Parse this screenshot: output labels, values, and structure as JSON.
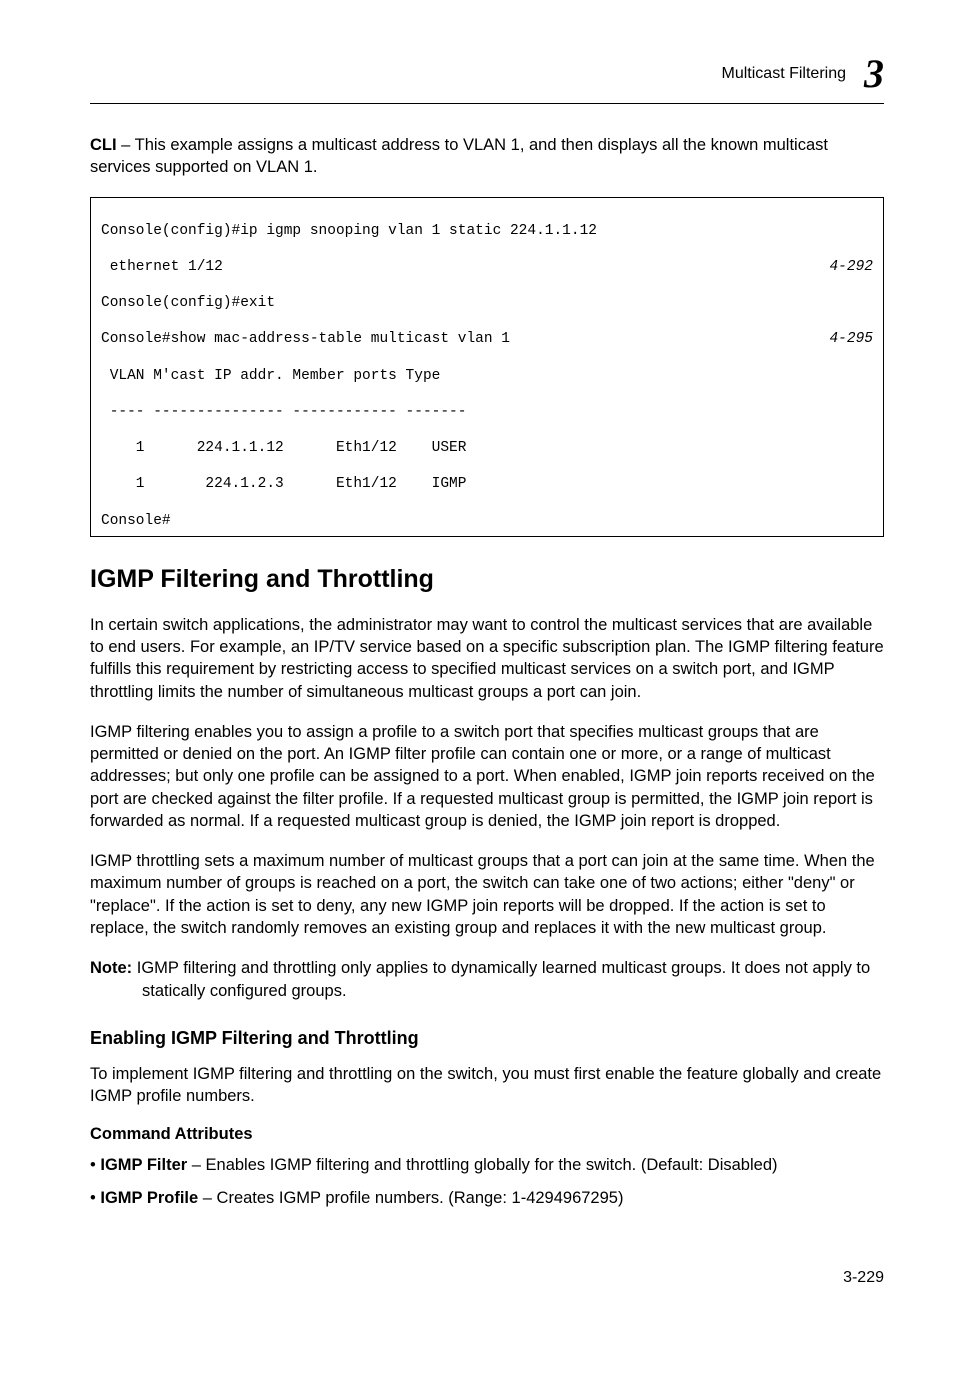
{
  "header": {
    "title": "Multicast Filtering",
    "chapter_num": "3"
  },
  "intro": {
    "cli_label": "CLI",
    "cli_text": " – This example assigns a multicast address to VLAN 1, and then displays all the known multicast services supported on VLAN 1."
  },
  "code": {
    "l1": "Console(config)#ip igmp snooping vlan 1 static 224.1.1.12",
    "l2": " ethernet 1/12",
    "l2ref": "4-292",
    "l3": "Console(config)#exit",
    "l4": "Console#show mac-address-table multicast vlan 1",
    "l4ref": "4-295",
    "l5": " VLAN M'cast IP addr. Member ports Type",
    "l6": " ---- --------------- ------------ -------",
    "l7": "    1      224.1.1.12      Eth1/12    USER",
    "l8": "    1       224.1.2.3      Eth1/12    IGMP",
    "l9": "Console#"
  },
  "section_title": "IGMP Filtering and Throttling",
  "p1": "In certain switch applications, the administrator may want to control the multicast services that are available to end users. For example, an IP/TV service based on a specific subscription plan. The IGMP filtering feature fulfills this requirement by restricting access to specified multicast services on a switch port, and IGMP throttling limits the number of simultaneous multicast groups a port can join.",
  "p2": "IGMP filtering enables you to assign a profile to a switch port that specifies multicast groups that are permitted or denied on the port. An IGMP filter profile can contain one or more, or a range of multicast addresses; but only one profile can be assigned to a port. When enabled, IGMP join reports received on the port are checked against the filter profile. If a requested multicast group is permitted, the IGMP join report is forwarded as normal. If a requested multicast group is denied, the IGMP join report is dropped.",
  "p3": "IGMP throttling sets a maximum number of multicast groups that a port can join at the same time. When the maximum number of groups is reached on a port, the switch can take one of two actions; either \"deny\" or \"replace\". If the action is set to deny, any new IGMP join reports will be dropped. If the action is set to replace, the switch randomly removes an existing group and replaces it with the new multicast group.",
  "note": {
    "label": "Note:",
    "text": " IGMP filtering and throttling only applies to dynamically learned multicast groups. It does not apply to statically configured groups."
  },
  "subsection_title": "Enabling IGMP Filtering and Throttling",
  "p4": "To implement IGMP filtering and throttling on the switch, you must first enable the feature globally and create IGMP profile numbers.",
  "attr_head": "Command Attributes",
  "bullets": [
    {
      "term": "IGMP Filter",
      "desc": " – Enables IGMP filtering and throttling globally for the switch. (Default: Disabled)"
    },
    {
      "term": "IGMP Profile",
      "desc": " – Creates IGMP profile numbers. (Range: 1-4294967295)"
    }
  ],
  "footer": "3-229"
}
